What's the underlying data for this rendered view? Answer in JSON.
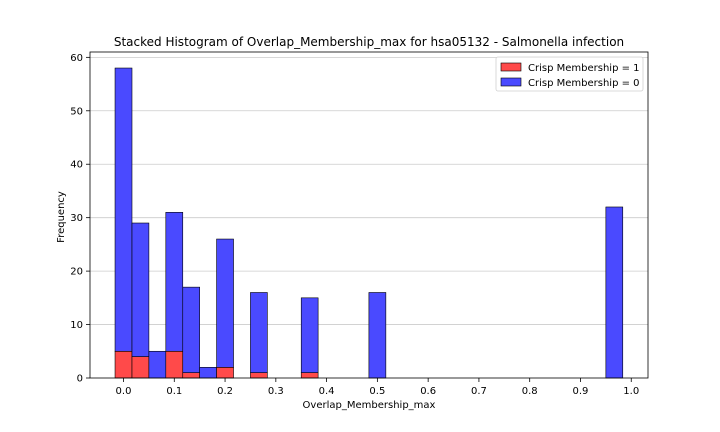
{
  "chart_data": {
    "type": "bar",
    "subtype": "stacked-histogram",
    "title": "Stacked Histogram of Overlap_Membership_max for hsa05132 - Salmonella infection",
    "xlabel": "Overlap_Membership_max",
    "ylabel": "Frequency",
    "xlim": [
      -0.066,
      1.033
    ],
    "ylim": [
      0,
      61
    ],
    "x_ticks": [
      "0.0",
      "0.1",
      "0.2",
      "0.3",
      "0.4",
      "0.5",
      "0.6",
      "0.7",
      "0.8",
      "0.9",
      "1.0"
    ],
    "x_tick_values": [
      0.0,
      0.1,
      0.2,
      0.3,
      0.4,
      0.5,
      0.6,
      0.7,
      0.8,
      0.9,
      1.0
    ],
    "y_ticks": [
      "0",
      "10",
      "20",
      "30",
      "40",
      "50",
      "60"
    ],
    "y_tick_values": [
      0,
      10,
      20,
      30,
      40,
      50,
      60
    ],
    "grid": "horizontal",
    "legend_position": "top-right",
    "bin_edges": [
      -0.0167,
      0.0167,
      0.05,
      0.0833,
      0.1167,
      0.15,
      0.1833,
      0.2167,
      0.25,
      0.2833,
      0.3167,
      0.35,
      0.3833,
      0.4167,
      0.45,
      0.4833,
      0.5167,
      0.55,
      0.5833,
      0.6167,
      0.65,
      0.6833,
      0.7167,
      0.75,
      0.7833,
      0.8167,
      0.85,
      0.8833,
      0.9167,
      0.95,
      0.9833,
      1.0167
    ],
    "series": [
      {
        "name": "Crisp Membership = 1",
        "color": "#ff4a4a",
        "values": [
          5,
          4,
          0,
          5,
          1,
          0,
          2,
          0,
          1,
          0,
          0,
          1,
          0,
          0,
          0,
          0,
          0,
          0,
          0,
          0,
          0,
          0,
          0,
          0,
          0,
          0,
          0,
          0,
          0,
          0
        ]
      },
      {
        "name": "Crisp Membership = 0",
        "color": "#4a4aff",
        "values": [
          53,
          25,
          5,
          26,
          16,
          2,
          24,
          0,
          15,
          0,
          0,
          14,
          0,
          0,
          0,
          16,
          0,
          0,
          0,
          0,
          0,
          0,
          0,
          0,
          0,
          0,
          0,
          0,
          0,
          32
        ]
      }
    ],
    "legend_entries": [
      "Crisp Membership = 1",
      "Crisp Membership = 0"
    ]
  }
}
